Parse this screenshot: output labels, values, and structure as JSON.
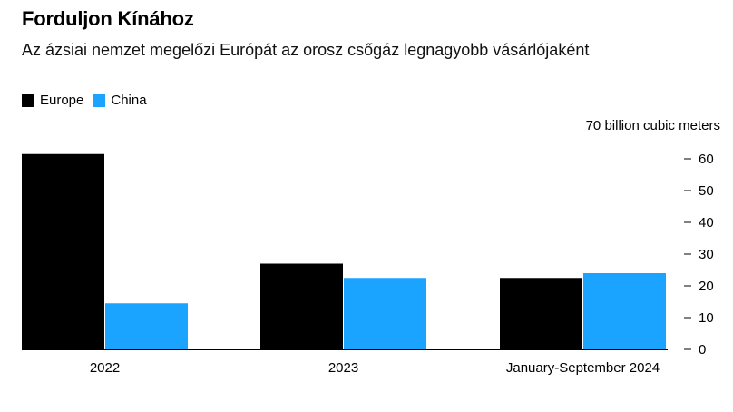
{
  "title": "Forduljon Kínához",
  "subtitle": "Az ázsiai nemzet megelőzi Európát az orosz csőgáz legnagyobb vásárlójaként",
  "unit_label": "70 billion cubic meters",
  "chart_data": {
    "type": "bar",
    "categories": [
      "2022",
      "2023",
      "January-September 2024"
    ],
    "series": [
      {
        "name": "Europe",
        "color": "#000000",
        "values": [
          61.5,
          27,
          22.5
        ]
      },
      {
        "name": "China",
        "color": "#1aa3ff",
        "values": [
          14.5,
          22.5,
          24
        ]
      }
    ],
    "ylim": [
      0,
      70
    ],
    "yticks": [
      0,
      10,
      20,
      30,
      40,
      50,
      60
    ],
    "ylabel": "70 billion cubic meters",
    "legend_position": "top-left",
    "grid": false
  }
}
